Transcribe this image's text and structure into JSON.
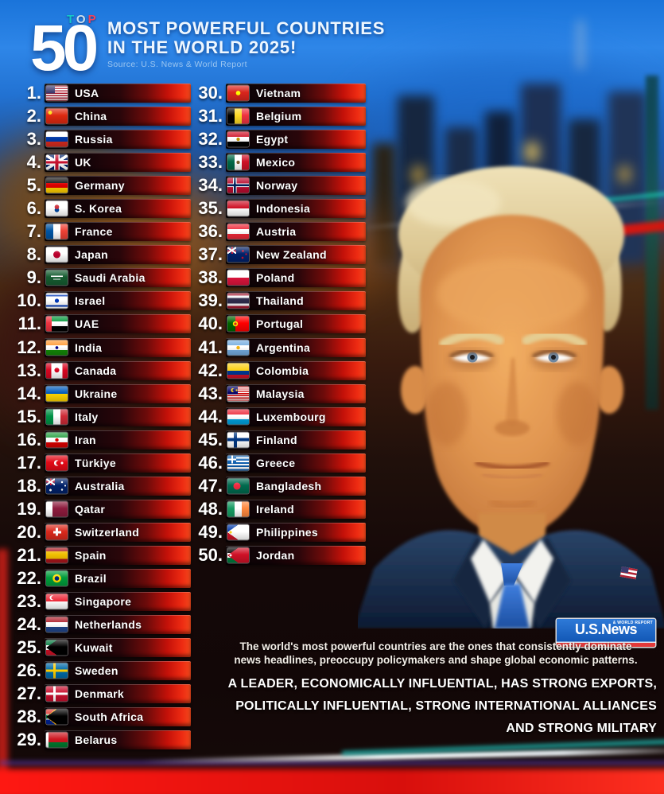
{
  "header": {
    "top_label": "TOP",
    "big_number": "50",
    "title_line1": "MOST POWERFUL COUNTRIES",
    "title_line2": "IN THE WORLD 2025!",
    "source": "Source: U.S. News & World Report"
  },
  "ranking": [
    {
      "rank": "1.",
      "country": "USA",
      "flag": "usa"
    },
    {
      "rank": "2.",
      "country": "China",
      "flag": "china"
    },
    {
      "rank": "3.",
      "country": "Russia",
      "flag": "russia"
    },
    {
      "rank": "4.",
      "country": "UK",
      "flag": "uk"
    },
    {
      "rank": "5.",
      "country": "Germany",
      "flag": "germany"
    },
    {
      "rank": "6.",
      "country": "S. Korea",
      "flag": "skorea"
    },
    {
      "rank": "7.",
      "country": "France",
      "flag": "france"
    },
    {
      "rank": "8.",
      "country": "Japan",
      "flag": "japan"
    },
    {
      "rank": "9.",
      "country": "Saudi Arabia",
      "flag": "saudiarabia"
    },
    {
      "rank": "10.",
      "country": "Israel",
      "flag": "israel"
    },
    {
      "rank": "11.",
      "country": "UAE",
      "flag": "uae"
    },
    {
      "rank": "12.",
      "country": "India",
      "flag": "india"
    },
    {
      "rank": "13.",
      "country": "Canada",
      "flag": "canada"
    },
    {
      "rank": "14.",
      "country": "Ukraine",
      "flag": "ukraine"
    },
    {
      "rank": "15.",
      "country": "Italy",
      "flag": "italy"
    },
    {
      "rank": "16.",
      "country": "Iran",
      "flag": "iran"
    },
    {
      "rank": "17.",
      "country": "Türkiye",
      "flag": "turkiye"
    },
    {
      "rank": "18.",
      "country": "Australia",
      "flag": "australia"
    },
    {
      "rank": "19.",
      "country": "Qatar",
      "flag": "qatar"
    },
    {
      "rank": "20.",
      "country": "Switzerland",
      "flag": "switzerland"
    },
    {
      "rank": "21.",
      "country": "Spain",
      "flag": "spain"
    },
    {
      "rank": "22.",
      "country": "Brazil",
      "flag": "brazil"
    },
    {
      "rank": "23.",
      "country": "Singapore",
      "flag": "singapore"
    },
    {
      "rank": "24.",
      "country": "Netherlands",
      "flag": "netherlands"
    },
    {
      "rank": "25.",
      "country": "Kuwait",
      "flag": "kuwait"
    },
    {
      "rank": "26.",
      "country": "Sweden",
      "flag": "sweden"
    },
    {
      "rank": "27.",
      "country": "Denmark",
      "flag": "denmark"
    },
    {
      "rank": "28.",
      "country": "South Africa",
      "flag": "southafrica"
    },
    {
      "rank": "29.",
      "country": "Belarus",
      "flag": "belarus"
    },
    {
      "rank": "30.",
      "country": "Vietnam",
      "flag": "vietnam"
    },
    {
      "rank": "31.",
      "country": "Belgium",
      "flag": "belgium"
    },
    {
      "rank": "32.",
      "country": "Egypt",
      "flag": "egypt"
    },
    {
      "rank": "33.",
      "country": "Mexico",
      "flag": "mexico"
    },
    {
      "rank": "34.",
      "country": "Norway",
      "flag": "norway"
    },
    {
      "rank": "35.",
      "country": "Indonesia",
      "flag": "indonesia"
    },
    {
      "rank": "36.",
      "country": "Austria",
      "flag": "austria"
    },
    {
      "rank": "37.",
      "country": "New Zealand",
      "flag": "newzealand"
    },
    {
      "rank": "38.",
      "country": "Poland",
      "flag": "poland"
    },
    {
      "rank": "39.",
      "country": "Thailand",
      "flag": "thailand"
    },
    {
      "rank": "40.",
      "country": "Portugal",
      "flag": "portugal"
    },
    {
      "rank": "41.",
      "country": "Argentina",
      "flag": "argentina"
    },
    {
      "rank": "42.",
      "country": "Colombia",
      "flag": "colombia"
    },
    {
      "rank": "43.",
      "country": "Malaysia",
      "flag": "malaysia"
    },
    {
      "rank": "44.",
      "country": "Luxembourg",
      "flag": "luxembourg"
    },
    {
      "rank": "45.",
      "country": "Finland",
      "flag": "finland"
    },
    {
      "rank": "46.",
      "country": "Greece",
      "flag": "greece"
    },
    {
      "rank": "47.",
      "country": "Bangladesh",
      "flag": "bangladesh"
    },
    {
      "rank": "48.",
      "country": "Ireland",
      "flag": "ireland"
    },
    {
      "rank": "49.",
      "country": "Philippines",
      "flag": "philippines"
    },
    {
      "rank": "50.",
      "country": "Jordan",
      "flag": "jordan"
    }
  ],
  "footer": {
    "logo_main": "U.S.News",
    "logo_sub": "& WORLD REPORT",
    "description_line1": "The world's most powerful countries are the ones that consistently dominate",
    "description_line2": "news headlines, preoccupy policymakers and shape global economic patterns.",
    "criteria_line1": "A LEADER, ECONOMICALLY INFLUENTIAL, HAS STRONG EXPORTS,",
    "criteria_line2": "POLITICALLY INFLUENTIAL, STRONG INTERNATIONAL ALLIANCES",
    "criteria_line3": "AND STRONG MILITARY"
  },
  "colors": {
    "sky_blue": "#1a74da",
    "bar_red": "#ee2b12",
    "accent_teal": "#14c8c8",
    "accent_pink": "#f0435c",
    "logo_blue": "#1156b4",
    "logo_red": "#e23a3a"
  }
}
